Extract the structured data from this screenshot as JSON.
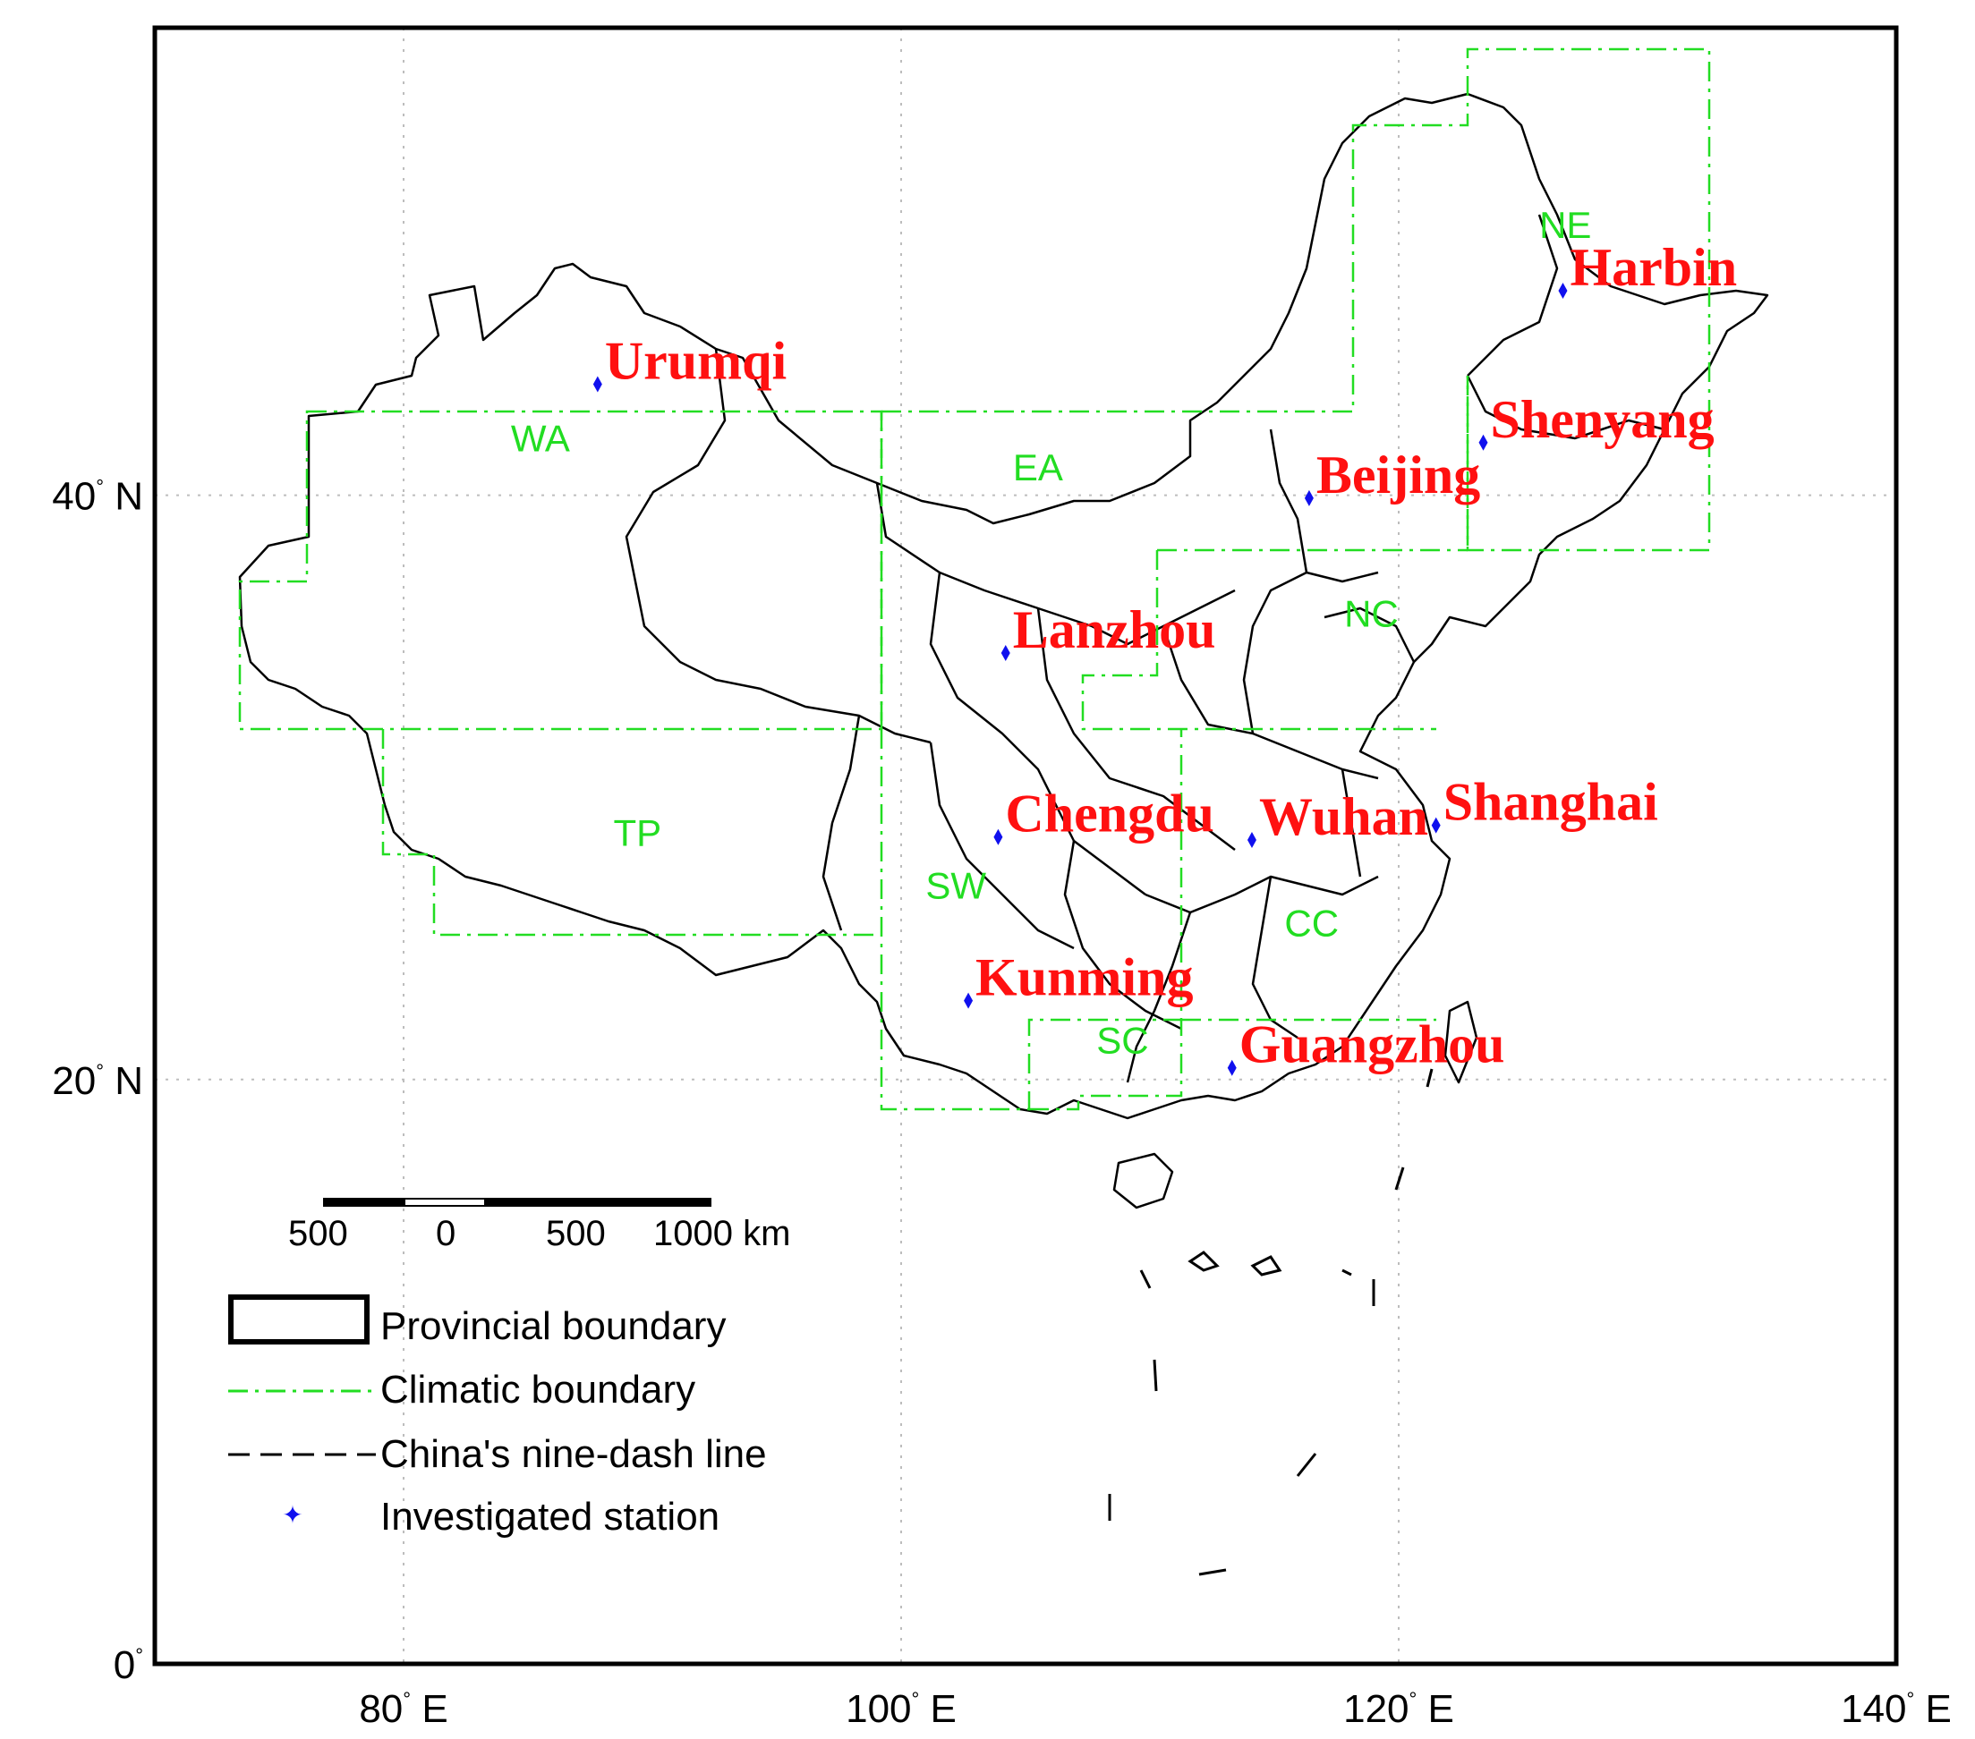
{
  "colors": {
    "frame": "#000000",
    "grid": "#bdbdbd",
    "climatic": "#22dd22",
    "region_label": "#22dd22",
    "city_label": "#ff1010",
    "station": "#1010ee",
    "province": "#000000"
  },
  "axes": {
    "x_ticks": [
      {
        "value": 80,
        "num": "80",
        "unit": "E"
      },
      {
        "value": 100,
        "num": "100",
        "unit": "E"
      },
      {
        "value": 120,
        "num": "120",
        "unit": "E"
      },
      {
        "value": 140,
        "num": "140",
        "unit": "E"
      }
    ],
    "y_ticks": [
      {
        "value": 40,
        "num": "40",
        "unit": "N"
      },
      {
        "value": 20,
        "num": "20",
        "unit": "N"
      },
      {
        "value": 0,
        "num": "0",
        "unit": ""
      }
    ],
    "degree_symbol": "°",
    "lon_range": [
      70,
      140
    ],
    "lat_range": [
      0,
      56
    ]
  },
  "regions": [
    {
      "code": "WA",
      "lon": 85.5,
      "lat": 41.5
    },
    {
      "code": "EA",
      "lon": 105.5,
      "lat": 40.5
    },
    {
      "code": "NE",
      "lon": 126.7,
      "lat": 48.8
    },
    {
      "code": "NC",
      "lon": 118.9,
      "lat": 35.5
    },
    {
      "code": "TP",
      "lon": 89.4,
      "lat": 28.0
    },
    {
      "code": "SW",
      "lon": 102.2,
      "lat": 26.2
    },
    {
      "code": "CC",
      "lon": 116.5,
      "lat": 24.9
    },
    {
      "code": "SC",
      "lon": 108.9,
      "lat": 20.9
    }
  ],
  "stations": [
    {
      "name": "Urumqi",
      "lon": 87.8,
      "lat": 43.8
    },
    {
      "name": "Harbin",
      "lon": 126.6,
      "lat": 47.0
    },
    {
      "name": "Shenyang",
      "lon": 123.4,
      "lat": 41.8
    },
    {
      "name": "Beijing",
      "lon": 116.4,
      "lat": 39.9
    },
    {
      "name": "Lanzhou",
      "lon": 104.2,
      "lat": 34.6
    },
    {
      "name": "Chengdu",
      "lon": 103.9,
      "lat": 28.3
    },
    {
      "name": "Wuhan",
      "lon": 114.1,
      "lat": 28.2
    },
    {
      "name": "Shanghai",
      "lon": 121.5,
      "lat": 28.7
    },
    {
      "name": "Kunming",
      "lon": 102.7,
      "lat": 22.7
    },
    {
      "name": "Guangzhou",
      "lon": 113.3,
      "lat": 20.4
    }
  ],
  "scale_bar": {
    "labels": [
      "500",
      "0",
      "500",
      "1000 km"
    ]
  },
  "legend": {
    "items": [
      {
        "key": "province",
        "label": "Provincial boundary"
      },
      {
        "key": "climatic",
        "label": "Climatic boundary"
      },
      {
        "key": "dash",
        "label": "China's nine-dash line"
      },
      {
        "key": "station",
        "label": "Investigated station"
      }
    ]
  }
}
